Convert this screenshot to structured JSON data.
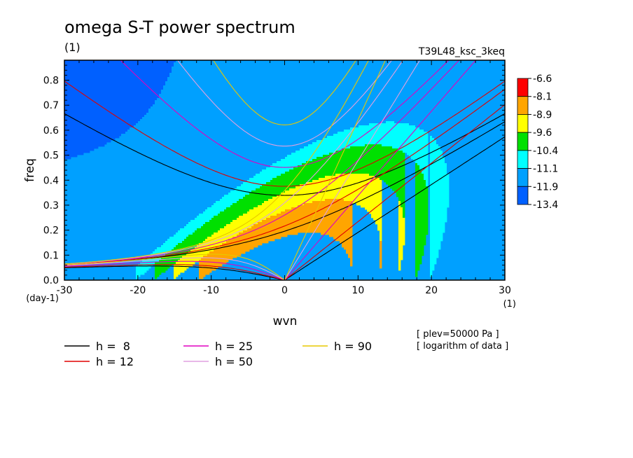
{
  "header": {
    "title": "omega S-T power spectrum",
    "title_unit": "(1)",
    "run_id": "T39L48_ksc_3keq"
  },
  "notes": [
    "[ plev=50000 Pa ]",
    "[ logarithm of data ]"
  ],
  "colors": {
    "levels": [
      "#ff0000",
      "#ffa500",
      "#ffff00",
      "#00e000",
      "#00ffff",
      "#00a0ff",
      "#0060ff"
    ]
  },
  "chart_data": {
    "type": "heatmap",
    "title": "omega S-T power spectrum",
    "xlabel": "wvn",
    "x_unit": "(1)",
    "ylabel": "freq",
    "y_unit": "(day-1)",
    "xlim": [
      -30,
      30
    ],
    "ylim": [
      0,
      0.88
    ],
    "x_ticks": [
      "-30",
      "-20",
      "-10",
      "0",
      "10",
      "20",
      "30"
    ],
    "x_tick_values": [
      -30,
      -20,
      -10,
      0,
      10,
      20,
      30
    ],
    "y_ticks": [
      "0.0",
      "0.1",
      "0.2",
      "0.3",
      "0.4",
      "0.5",
      "0.6",
      "0.7",
      "0.8"
    ],
    "y_tick_values": [
      0,
      0.1,
      0.2,
      0.3,
      0.4,
      0.5,
      0.6,
      0.7,
      0.8
    ],
    "colorbar": {
      "labels": [
        "-6.6",
        "-8.1",
        "-8.9",
        "-9.6",
        "-10.4",
        "-11.1",
        "-11.9",
        "-13.4"
      ],
      "colors": [
        "#ff0000",
        "#ffa500",
        "#ffff00",
        "#00e000",
        "#00ffff",
        "#00a0ff",
        "#0060ff"
      ]
    },
    "series": [
      {
        "name": "h =  8",
        "h": 8,
        "color": "#000000"
      },
      {
        "name": "h = 12",
        "h": 12,
        "color": "#e00000"
      },
      {
        "name": "h = 25",
        "h": 25,
        "color": "#e000c0"
      },
      {
        "name": "h = 50",
        "h": 50,
        "color": "#e0a0e0"
      },
      {
        "name": "h = 90",
        "h": 90,
        "color": "#e8c800"
      }
    ]
  }
}
